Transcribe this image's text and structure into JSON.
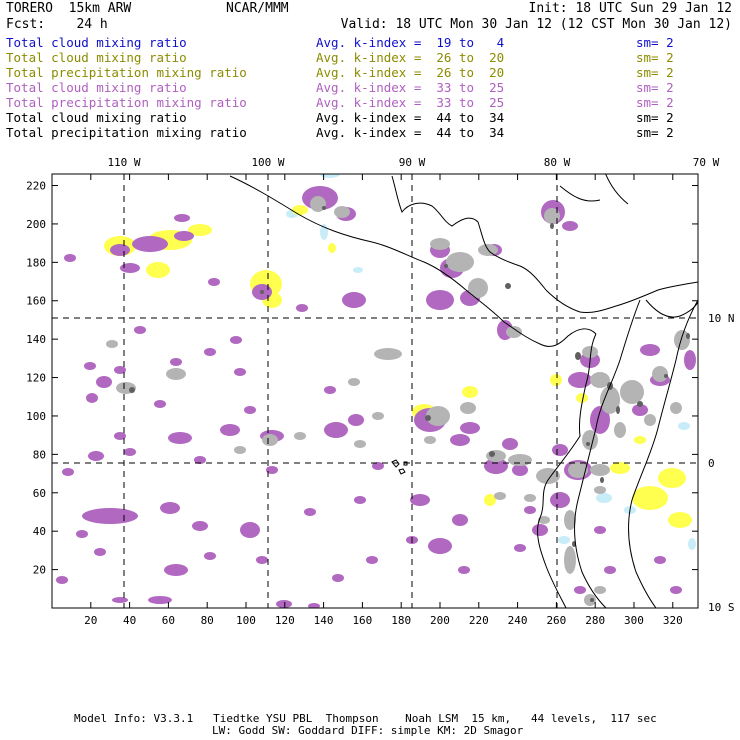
{
  "header": {
    "model": "TORERO  15km ARW",
    "org": "NCAR/MMM",
    "init": "Init: 18 UTC Sun 29 Jan 12",
    "fcst": "Fcst:    24 h",
    "valid": "Valid: 18 UTC Mon 30 Jan 12 (12 CST Mon 30 Jan 12)"
  },
  "legend": [
    {
      "field": "Total cloud mixing ratio",
      "kidx": "Avg. k-index =  19 to   4",
      "sm": "sm= 2",
      "color": "#1010c8"
    },
    {
      "field": "Total cloud mixing ratio",
      "kidx": "Avg. k-index =  26 to  20",
      "sm": "sm= 2",
      "color": "#8c8c00"
    },
    {
      "field": "Total precipitation mixing ratio",
      "kidx": "Avg. k-index =  26 to  20",
      "sm": "sm= 2",
      "color": "#8c8c00"
    },
    {
      "field": "Total cloud mixing ratio",
      "kidx": "Avg. k-index =  33 to  25",
      "sm": "sm= 2",
      "color": "#b060c0"
    },
    {
      "field": "Total precipitation mixing ratio",
      "kidx": "Avg. k-index =  33 to  25",
      "sm": "sm= 2",
      "color": "#b060c0"
    },
    {
      "field": "Total cloud mixing ratio",
      "kidx": "Avg. k-index =  44 to  34",
      "sm": "sm= 2",
      "color": "#000000"
    },
    {
      "field": "Total precipitation mixing ratio",
      "kidx": "Avg. k-index =  44 to  34",
      "sm": "sm= 2",
      "color": "#000000"
    }
  ],
  "map": {
    "lon_labels": [
      "110 W",
      "100 W",
      "90 W",
      "80 W",
      "70 W"
    ],
    "lat_labels": [
      "10 N",
      "0",
      "10 S"
    ],
    "x_ticks": [
      "20",
      "40",
      "60",
      "80",
      "100",
      "120",
      "140",
      "160",
      "180",
      "200",
      "220",
      "240",
      "260",
      "280",
      "300",
      "320"
    ],
    "y_ticks": [
      "220",
      "200",
      "180",
      "160",
      "140",
      "120",
      "100",
      "80",
      "60",
      "40",
      "20"
    ],
    "colors": {
      "light_blue": "#c8ecf8",
      "yellow": "#ffff50",
      "purple": "#b068c0",
      "gray": "#b4b4b4",
      "dark_gray": "#606060"
    }
  },
  "footer": {
    "line1": "Model Info: V3.3.1   Tiedtke YSU PBL  Thompson    Noah LSM  15 km,   44 levels,  117 sec",
    "line2": "LW: Godd SW: Goddard DIFF: simple KM: 2D Smagor"
  }
}
